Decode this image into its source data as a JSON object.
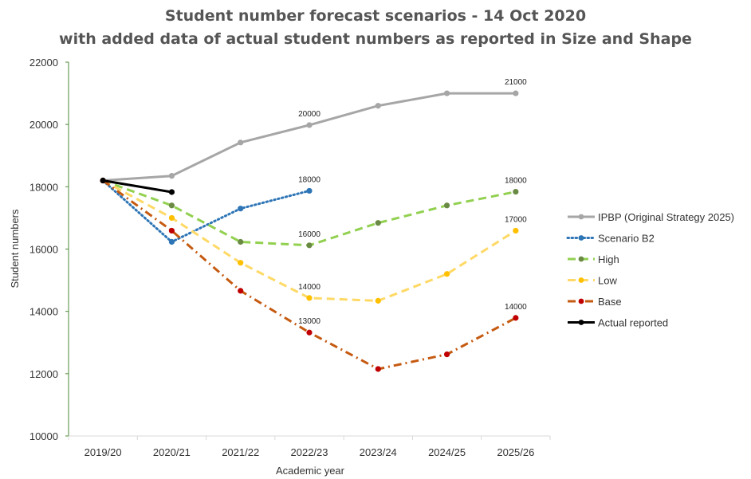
{
  "chart_data": {
    "type": "line",
    "title_line1": "Student number forecast scenarios  - 14 Oct 2020",
    "title_line2": "with added data of actual student numbers as reported in Size and Shape",
    "xlabel": "Academic year",
    "ylabel": "Student numbers",
    "categories": [
      "2019/20",
      "2020/21",
      "2021/22",
      "2022/23",
      "2023/24",
      "2024/25",
      "2025/26"
    ],
    "ylim": [
      10000,
      22000
    ],
    "yticks": [
      10000,
      12000,
      14000,
      16000,
      18000,
      20000,
      22000
    ],
    "ytick_labels": [
      "10000",
      "12000",
      "14000",
      "16000",
      "18000",
      "20000",
      "22000"
    ],
    "legend_position": "right",
    "series": [
      {
        "name": "IPBP (Original Strategy 2025)",
        "color": "#a6a6a6",
        "dash": "solid",
        "values": [
          18200,
          18350,
          19420,
          19980,
          20600,
          21000,
          21000
        ]
      },
      {
        "name": "Scenario B2",
        "color": "#2e75b6",
        "dash": "dot",
        "marker_color": "#2e75b6",
        "values": [
          18200,
          16230,
          17300,
          17870,
          null,
          null,
          null
        ]
      },
      {
        "name": "High",
        "color": "#92d050",
        "dash": "dash",
        "marker_color": "#6a8a44",
        "values": [
          18200,
          17400,
          16230,
          16120,
          16840,
          17400,
          17840
        ]
      },
      {
        "name": "Low",
        "color": "#ffd966",
        "dash": "dash",
        "marker_color": "#ffc000",
        "values": [
          18200,
          17000,
          15560,
          14430,
          14340,
          15200,
          16590
        ]
      },
      {
        "name": "Base",
        "color": "#c55a11",
        "dash": "dashdot",
        "marker_color": "#c00000",
        "values": [
          18200,
          16590,
          14660,
          13320,
          12150,
          12620,
          13790
        ]
      },
      {
        "name": "Actual reported",
        "color": "#000000",
        "dash": "solid",
        "values": [
          18200,
          17830,
          null,
          null,
          null,
          null,
          null
        ]
      }
    ],
    "annotations": [
      {
        "text": "21000",
        "x": "2025/26",
        "y": 21000
      },
      {
        "text": "20000",
        "x": "2022/23",
        "y": 19980
      },
      {
        "text": "18000",
        "x": "2022/23",
        "y": 17870
      },
      {
        "text": "18000",
        "x": "2025/26",
        "y": 17840
      },
      {
        "text": "16000",
        "x": "2022/23",
        "y": 16120
      },
      {
        "text": "17000",
        "x": "2025/26",
        "y": 16590
      },
      {
        "text": "14000",
        "x": "2022/23",
        "y": 14430
      },
      {
        "text": "13000",
        "x": "2022/23",
        "y": 13320
      },
      {
        "text": "14000",
        "x": "2025/26",
        "y": 13790
      }
    ]
  }
}
